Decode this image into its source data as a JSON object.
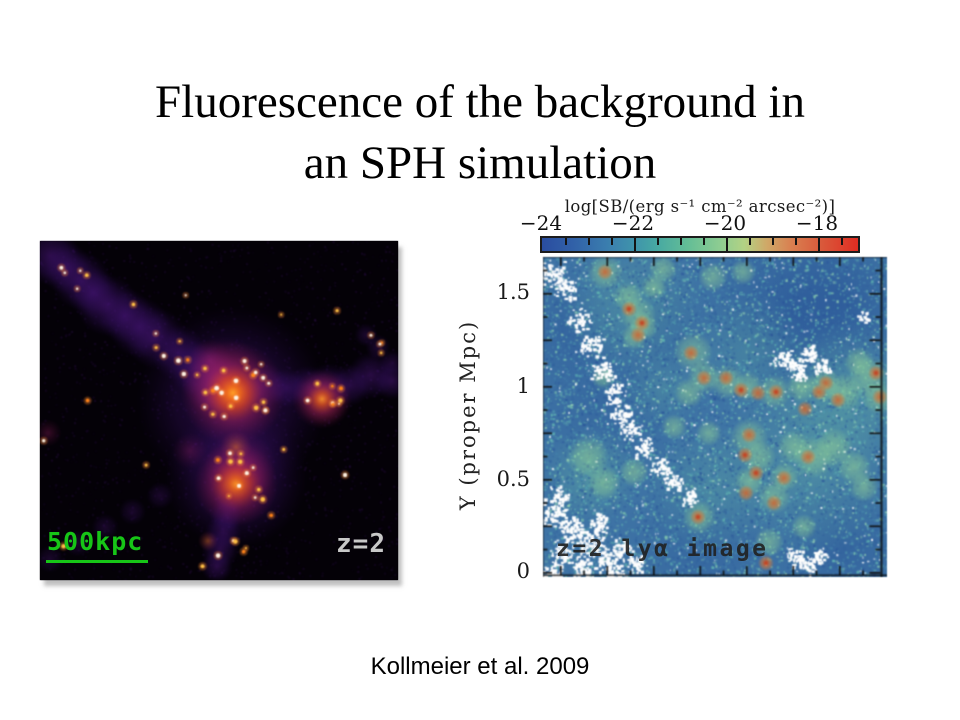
{
  "slide": {
    "background_color": "#ffffff",
    "title_line1": "Fluorescence of the background in",
    "title_line2": "an SPH simulation",
    "citation": "Kollmeier et al. 2009"
  },
  "left_panel": {
    "scale_bar_label": "500kpc",
    "scale_bar_color": "#17c517",
    "redshift_label": "z=2",
    "redshift_label_color": "#c8c8c8"
  },
  "right_panel": {
    "colorbar_title": "log[SB/(erg s⁻¹ cm⁻² arcsec⁻²)]",
    "colorbar_tick_labels": [
      "−24",
      "−22",
      "−20",
      "−18"
    ],
    "colorbar_gradient": [
      [
        0,
        "#2a4da0"
      ],
      [
        0.1,
        "#3161a8"
      ],
      [
        0.2,
        "#3a7cae"
      ],
      [
        0.29,
        "#3f93ac"
      ],
      [
        0.36,
        "#46a8a3"
      ],
      [
        0.46,
        "#63bd96"
      ],
      [
        0.56,
        "#8ccc92"
      ],
      [
        0.64,
        "#b2d284"
      ],
      [
        0.71,
        "#cfa968"
      ],
      [
        0.79,
        "#d97f50"
      ],
      [
        0.89,
        "#d9573a"
      ],
      [
        1,
        "#e02d22"
      ]
    ],
    "y_axis_label": "Y (proper Mpc)",
    "y_tick_labels": [
      "1.5",
      "1",
      "0.5",
      "0"
    ],
    "overlay_label": "z=2 lyα image"
  },
  "chart_data": {
    "type": "heatmap",
    "title": "z=2 lyα image",
    "ylabel": "Y (proper Mpc)",
    "y_ticks": [
      0,
      0.5,
      1,
      1.5
    ],
    "ylim": [
      0,
      1.7
    ],
    "colorbar_label": "log[SB/(erg s⁻¹ cm⁻² arcsec⁻²)]",
    "colorbar_ticks": [
      -24,
      -22,
      -20,
      -18
    ],
    "colorbar_range": [
      -24,
      -17.1
    ],
    "grid": "off",
    "legend": "off"
  }
}
